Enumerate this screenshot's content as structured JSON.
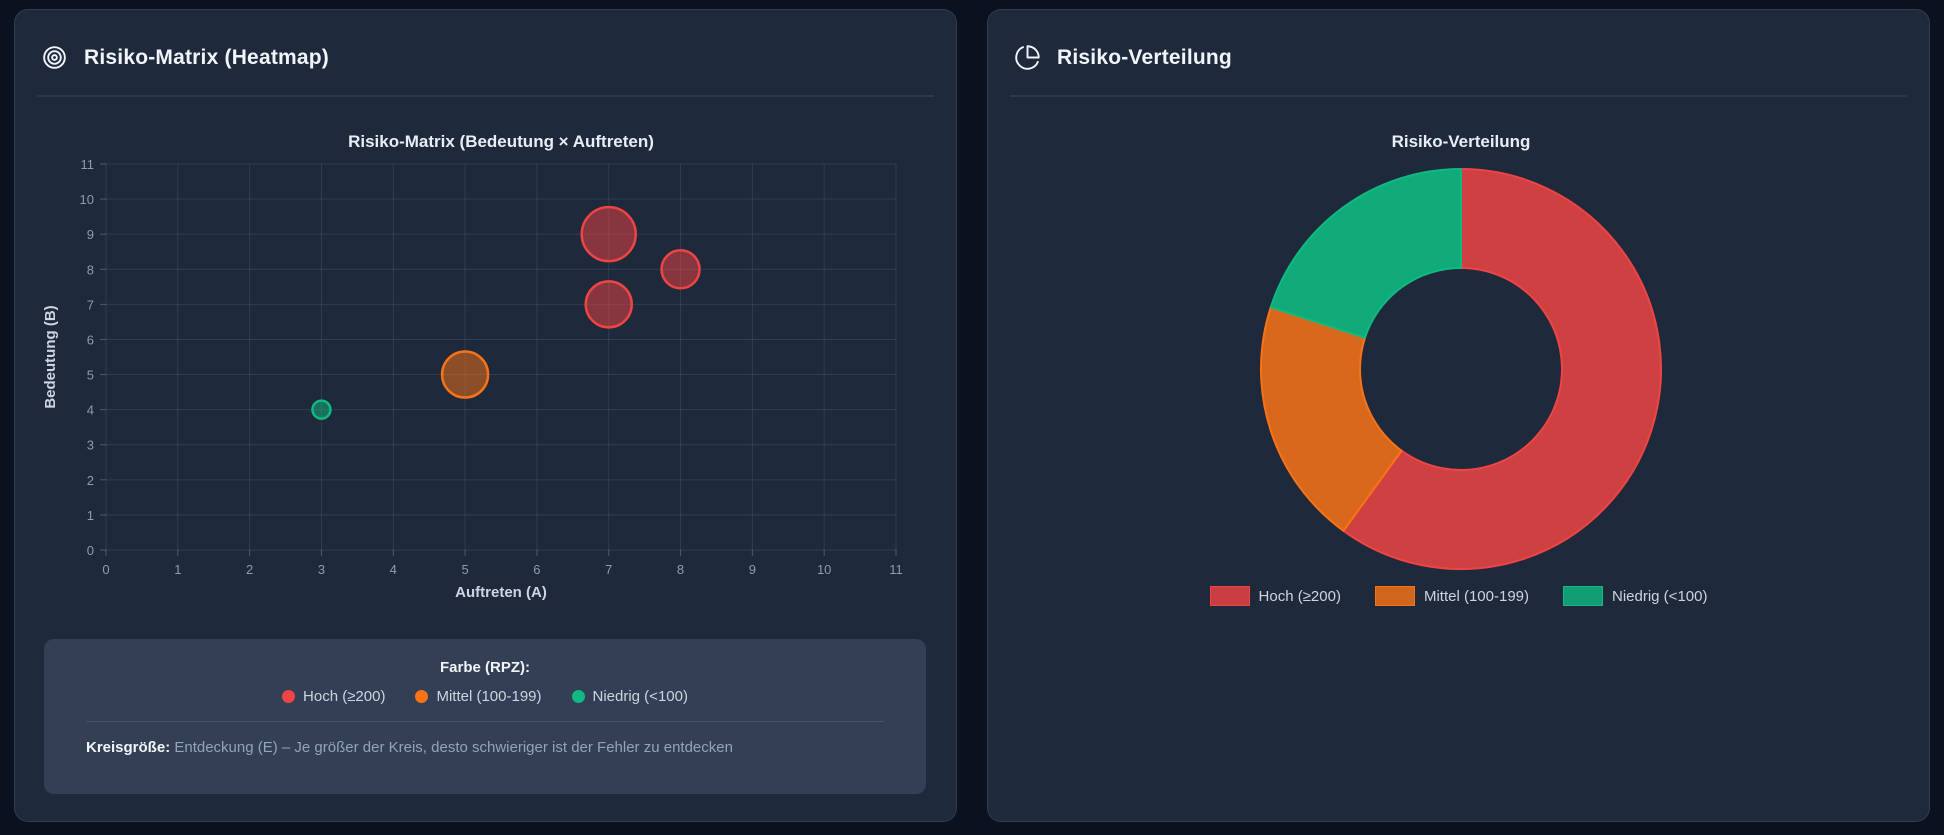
{
  "left_panel": {
    "title": "Risiko-Matrix (Heatmap)",
    "info_box": {
      "color_label": "Farbe (RPZ):",
      "legend": [
        {
          "label": "Hoch (≥200)",
          "color": "#ef4444"
        },
        {
          "label": "Mittel (100-199)",
          "color": "#f97316"
        },
        {
          "label": "Niedrig (<100)",
          "color": "#10b981"
        }
      ],
      "size_label": "Kreisgröße:",
      "size_text": " Entdeckung (E) – Je größer der Kreis, desto schwieriger ist der Fehler zu entdecken"
    }
  },
  "right_panel": {
    "title": "Risiko-Verteilung"
  },
  "chart_data": [
    {
      "type": "scatter",
      "title": "Risiko-Matrix (Bedeutung × Auftreten)",
      "xlabel": "Auftreten (A)",
      "ylabel": "Bedeutung (B)",
      "xlim": [
        0,
        11
      ],
      "ylim": [
        0,
        11
      ],
      "xticks": [
        0,
        1,
        2,
        3,
        4,
        5,
        6,
        7,
        8,
        9,
        10,
        11
      ],
      "yticks": [
        0,
        1,
        2,
        3,
        4,
        5,
        6,
        7,
        8,
        9,
        10,
        11
      ],
      "grid": true,
      "bubble_size_meaning": "Entdeckung (E)",
      "points": [
        {
          "x": 7,
          "y": 9,
          "r": 27,
          "category": "hoch"
        },
        {
          "x": 8,
          "y": 8,
          "r": 19,
          "category": "hoch"
        },
        {
          "x": 7,
          "y": 7,
          "r": 23,
          "category": "hoch"
        },
        {
          "x": 5,
          "y": 5,
          "r": 23,
          "category": "mittel"
        },
        {
          "x": 3,
          "y": 4,
          "r": 9,
          "category": "niedrig"
        }
      ],
      "colors": {
        "hoch": "#ef4444",
        "mittel": "#f97316",
        "niedrig": "#10b981"
      }
    },
    {
      "type": "pie",
      "donut": true,
      "title": "Risiko-Verteilung",
      "labels": [
        "Hoch (≥200)",
        "Mittel (100-199)",
        "Niedrig (<100)"
      ],
      "values": [
        3,
        1,
        1
      ],
      "percentages": [
        60,
        20,
        20
      ],
      "colors": [
        "#ef4444",
        "#f97316",
        "#10b981"
      ],
      "legend_position": "bottom"
    }
  ]
}
